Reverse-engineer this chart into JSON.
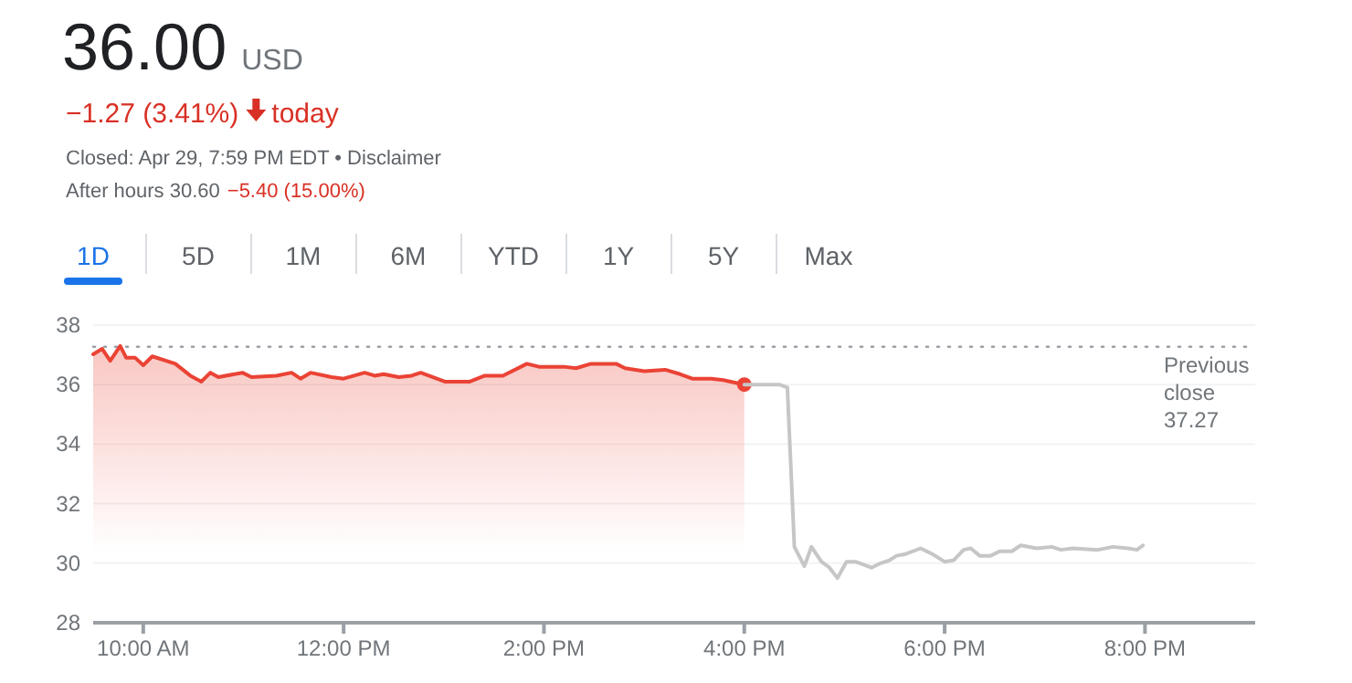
{
  "chart_data": {
    "type": "line",
    "title": "36.00",
    "subtitle": "USD",
    "annotations": [
      "−1.27 (3.41%)",
      "today",
      "Closed: Apr 29, 7:59 PM EDT • Disclaimer",
      "After hours 30.60",
      "−5.40 (15.00%)",
      "1D",
      "5D",
      "1M",
      "6M",
      "YTD",
      "1Y",
      "5Y",
      "Max"
    ],
    "xlim": [
      9.5,
      21.1
    ],
    "ylim": [
      28,
      38
    ],
    "xticks": [
      {
        "value": 10,
        "label": "10:00 AM"
      },
      {
        "value": 12,
        "label": "12:00 PM"
      },
      {
        "value": 14,
        "label": "2:00 PM"
      },
      {
        "value": 16,
        "label": "4:00 PM"
      },
      {
        "value": 18,
        "label": "6:00 PM"
      },
      {
        "value": 20,
        "label": "8:00 PM"
      }
    ],
    "yticks": [
      28,
      30,
      32,
      34,
      36,
      38
    ],
    "grid": "y",
    "ref_lines": [
      {
        "axis": "y",
        "value": 37.27,
        "label": "Previous close 37.27",
        "color": "#9aa0a6",
        "line_style": "dotted"
      }
    ],
    "series": [
      {
        "type": "area",
        "color": "#ea4335",
        "x": [
          9.5,
          9.59,
          9.67,
          9.77,
          9.83,
          9.92,
          10.0,
          10.09,
          10.32,
          10.47,
          10.58,
          10.67,
          10.75,
          10.99,
          11.08,
          11.33,
          11.48,
          11.57,
          11.67,
          11.88,
          12.0,
          12.21,
          12.31,
          12.4,
          12.55,
          12.68,
          12.77,
          13.01,
          13.26,
          13.41,
          13.59,
          13.83,
          13.95,
          14.2,
          14.32,
          14.47,
          14.72,
          14.81,
          15.0,
          15.21,
          15.36,
          15.48,
          15.67,
          15.79,
          16.0
        ],
        "values": [
          37.02,
          37.2,
          36.8,
          37.3,
          36.9,
          36.9,
          36.65,
          36.95,
          36.7,
          36.3,
          36.1,
          36.4,
          36.25,
          36.4,
          36.25,
          36.3,
          36.4,
          36.2,
          36.4,
          36.25,
          36.2,
          36.4,
          36.3,
          36.35,
          36.25,
          36.3,
          36.4,
          36.1,
          36.1,
          36.3,
          36.3,
          36.7,
          36.6,
          36.6,
          36.55,
          36.7,
          36.7,
          36.55,
          36.45,
          36.5,
          36.35,
          36.2,
          36.2,
          36.15,
          36.0
        ]
      },
      {
        "type": "line",
        "color": "#c6c6c6",
        "x": [
          16.0,
          16.35,
          16.43,
          16.5,
          16.6,
          16.67,
          16.77,
          16.85,
          16.93,
          17.02,
          17.11,
          17.27,
          17.36,
          17.45,
          17.52,
          17.6,
          17.76,
          17.88,
          18.0,
          18.09,
          18.19,
          18.26,
          18.35,
          18.46,
          18.55,
          18.67,
          18.76,
          18.92,
          19.07,
          19.16,
          19.28,
          19.53,
          19.68,
          19.83,
          19.92,
          19.98
        ],
        "values": [
          36.0,
          36.0,
          35.9,
          30.55,
          29.9,
          30.55,
          30.05,
          29.85,
          29.5,
          30.05,
          30.05,
          29.85,
          30.0,
          30.1,
          30.25,
          30.3,
          30.5,
          30.3,
          30.05,
          30.1,
          30.45,
          30.5,
          30.25,
          30.25,
          30.4,
          30.4,
          30.6,
          30.5,
          30.55,
          30.45,
          30.5,
          30.45,
          30.55,
          30.5,
          30.45,
          30.6
        ]
      }
    ]
  }
}
